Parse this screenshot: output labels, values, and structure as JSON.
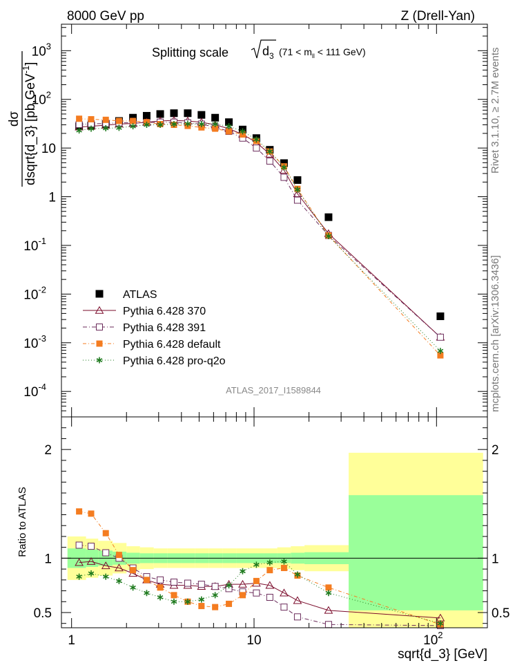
{
  "header": {
    "energy_label": "8000 GeV pp",
    "process_label": "Z (Drell-Yan)",
    "side_label_top": "Rivet 3.1.10, ≥ 2.7M events",
    "side_label_bottom": "mcplots.cern.ch [arXiv:1306.3436]"
  },
  "main_plot": {
    "title_prefix": "Splitting scale",
    "title_radical": "d",
    "title_radical_sub": "3",
    "title_cut": "(71 < m",
    "title_cut_sub": "ll",
    "title_cut_end": " < 111 GeV)",
    "ylabel_num": "dσ",
    "ylabel_den": "dsqrt{d_3} [pb,GeV",
    "ylabel_den_sup": "-1",
    "ylabel_den_end": "]",
    "analysis_id": "ATLAS_2017_I1589844",
    "ytick_labels": [
      {
        "base": "10",
        "exp": "-4"
      },
      {
        "base": "10",
        "exp": "-3"
      },
      {
        "base": "10",
        "exp": "-2"
      },
      {
        "base": "10",
        "exp": "-1"
      },
      {
        "base": "1",
        "exp": ""
      },
      {
        "base": "10",
        "exp": ""
      },
      {
        "base": "10",
        "exp": "2"
      },
      {
        "base": "10",
        "exp": "3"
      }
    ]
  },
  "ratio_plot": {
    "ylabel": "Ratio to ATLAS",
    "ytick_labels": [
      "0.5",
      "1",
      "2"
    ]
  },
  "xaxis": {
    "label": "sqrt{d_3} [GeV]",
    "tick_labels": [
      {
        "base": "1",
        "exp": ""
      },
      {
        "base": "10",
        "exp": ""
      },
      {
        "base": "10",
        "exp": "2"
      }
    ]
  },
  "legend": [
    {
      "label": "ATLAS",
      "color": "#000000",
      "marker": "filled-square"
    },
    {
      "label": "Pythia 6.428 370",
      "color": "#7a0a2a",
      "marker": "open-triangle"
    },
    {
      "label": "Pythia 6.428 391",
      "color": "#6a2a5a",
      "marker": "open-square"
    },
    {
      "label": "Pythia 6.428 default",
      "color": "#f47c20",
      "marker": "filled-square"
    },
    {
      "label": "Pythia 6.428 pro-q2o",
      "color": "#1e7a1e",
      "marker": "star"
    }
  ],
  "chart_data": {
    "type": "scatter",
    "x_scale": "log",
    "y_scale": "log",
    "xlim": [
      0.88,
      190
    ],
    "ylim": [
      3e-05,
      3500
    ],
    "ratio_ylim": [
      0.36,
      2.3
    ],
    "x": [
      1.1,
      1.28,
      1.54,
      1.82,
      2.17,
      2.58,
      3.06,
      3.64,
      4.33,
      5.15,
      6.12,
      7.28,
      8.66,
      10.3,
      12.2,
      14.6,
      17.3,
      25.6,
      105
    ],
    "series": [
      {
        "name": "ATLAS",
        "values": [
          28,
          29,
          31,
          36,
          42,
          46,
          50,
          52,
          52,
          48,
          42,
          34,
          24,
          16,
          9.2,
          4.9,
          2.2,
          0.38,
          0.0035
        ]
      },
      {
        "name": "Pythia 6.428 370",
        "values": [
          27,
          28,
          29.5,
          31,
          32,
          34,
          36,
          37,
          36,
          34,
          30,
          25,
          19,
          13,
          7.5,
          3.5,
          1.15,
          0.175,
          0.0013
        ]
      },
      {
        "name": "Pythia 6.428 391",
        "values": [
          30.5,
          31.5,
          32,
          33,
          33,
          33.5,
          34,
          34,
          33,
          31,
          27,
          22,
          16,
          10,
          5.4,
          2.5,
          0.85,
          0.16,
          0.0013
        ]
      },
      {
        "name": "Pythia 6.428 default",
        "values": [
          40,
          39,
          38,
          36,
          36,
          34,
          31,
          30,
          28.5,
          26.5,
          25,
          22,
          19,
          14,
          8.5,
          4.2,
          1.45,
          0.16,
          0.00055
        ]
      },
      {
        "name": "Pythia 6.428 pro-q2o",
        "values": [
          23,
          25,
          25.5,
          26,
          28,
          30,
          30,
          31,
          31.5,
          31,
          31,
          28,
          22,
          15,
          8.5,
          4.0,
          1.4,
          0.155,
          0.00068
        ]
      }
    ],
    "ratio_series": [
      {
        "name": "Pythia 6.428 370",
        "values": [
          0.96,
          0.97,
          0.93,
          0.91,
          0.86,
          0.8,
          0.76,
          0.75,
          0.75,
          0.74,
          0.74,
          0.76,
          0.76,
          0.77,
          0.75,
          0.68,
          0.61,
          0.52,
          0.45
        ]
      },
      {
        "name": "Pythia 6.428 391",
        "values": [
          1.12,
          1.11,
          1.05,
          1.0,
          0.91,
          0.83,
          0.8,
          0.78,
          0.77,
          0.76,
          0.74,
          0.72,
          0.69,
          0.68,
          0.64,
          0.55,
          0.46,
          0.39,
          0.38
        ]
      },
      {
        "name": "Pythia 6.428 default",
        "values": [
          1.43,
          1.41,
          1.23,
          1.03,
          0.89,
          0.8,
          0.73,
          0.66,
          0.6,
          0.56,
          0.55,
          0.58,
          0.66,
          0.79,
          0.89,
          0.91,
          0.84,
          0.73,
          0.39
        ]
      },
      {
        "name": "Pythia 6.428 pro-q2o",
        "values": [
          0.83,
          0.86,
          0.83,
          0.79,
          0.73,
          0.68,
          0.64,
          0.6,
          0.6,
          0.62,
          0.66,
          0.75,
          0.88,
          0.94,
          0.96,
          0.97,
          0.85,
          0.68,
          0.4
        ]
      }
    ],
    "uncertainty_bands": {
      "x_edges": [
        0.95,
        1.2,
        1.4,
        1.68,
        2.0,
        2.37,
        2.82,
        3.36,
        3.99,
        4.74,
        5.64,
        6.71,
        7.98,
        9.49,
        11.3,
        13.4,
        15.9,
        18.9,
        33,
        180
      ],
      "inner_lo": [
        0.91,
        0.92,
        0.93,
        0.94,
        0.95,
        0.955,
        0.955,
        0.955,
        0.955,
        0.955,
        0.955,
        0.955,
        0.955,
        0.955,
        0.955,
        0.955,
        0.95,
        0.945,
        0.52
      ],
      "inner_hi": [
        1.09,
        1.08,
        1.07,
        1.06,
        1.05,
        1.045,
        1.045,
        1.045,
        1.045,
        1.045,
        1.045,
        1.045,
        1.045,
        1.045,
        1.045,
        1.045,
        1.05,
        1.055,
        1.58
      ],
      "outer_lo": [
        0.8,
        0.82,
        0.84,
        0.86,
        0.89,
        0.9,
        0.91,
        0.91,
        0.91,
        0.91,
        0.91,
        0.91,
        0.91,
        0.91,
        0.91,
        0.9,
        0.89,
        0.88,
        0.35
      ],
      "outer_hi": [
        1.2,
        1.18,
        1.16,
        1.14,
        1.11,
        1.1,
        1.09,
        1.09,
        1.09,
        1.09,
        1.09,
        1.09,
        1.09,
        1.09,
        1.09,
        1.1,
        1.11,
        1.12,
        1.97
      ],
      "inner_color": "#9aff9a",
      "outer_color": "#ffff99"
    }
  }
}
